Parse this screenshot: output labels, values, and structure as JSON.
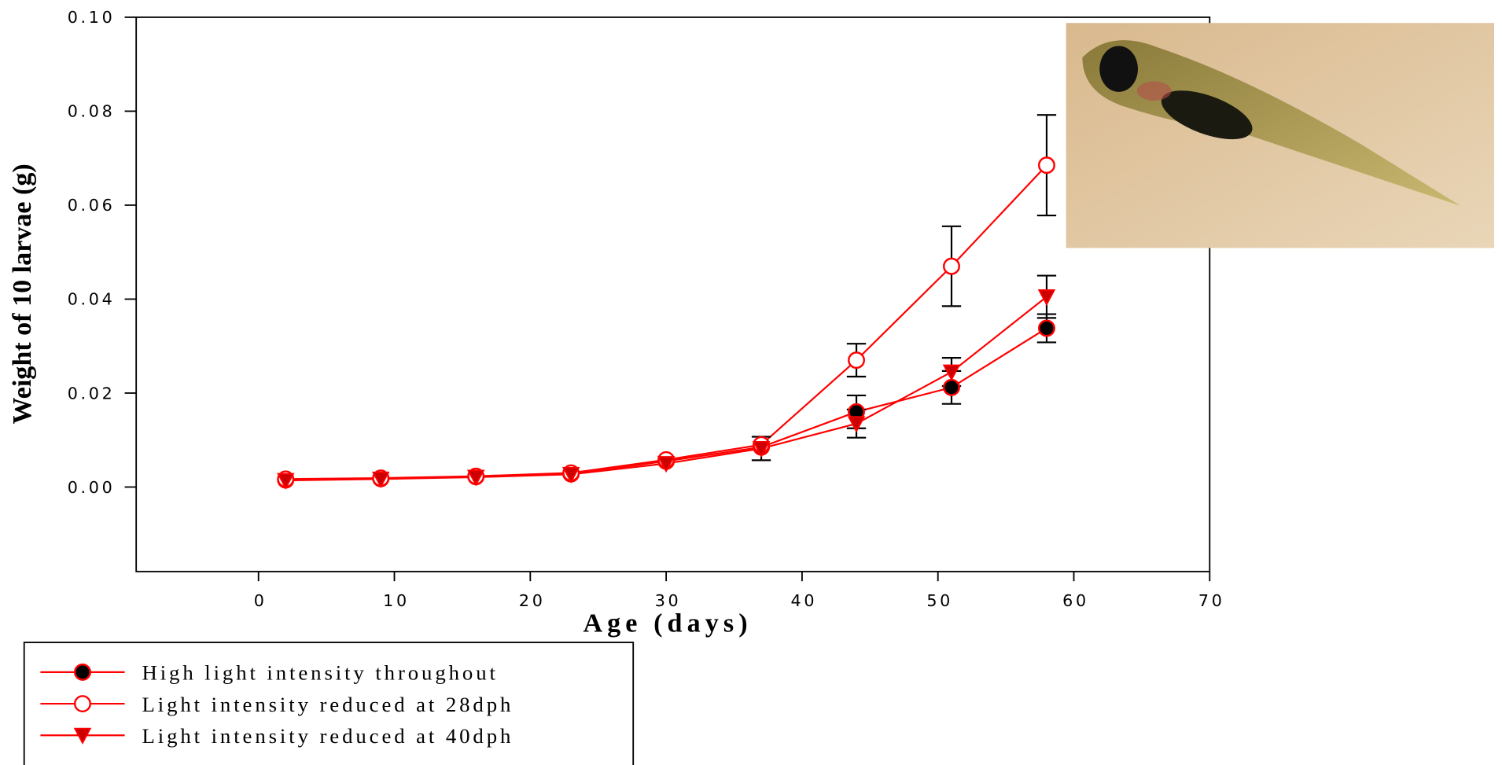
{
  "chart_data": {
    "type": "line",
    "x_label": "Age (days)",
    "y_label": "Weight of 10 larvae (g)",
    "xlim": [
      -9,
      70
    ],
    "xticks": [
      0,
      10,
      20,
      30,
      40,
      50,
      60,
      70
    ],
    "ylim": [
      -0.018,
      0.1
    ],
    "yticks": [
      {
        "value": 0,
        "label": "0.00"
      },
      {
        "value": 0.02,
        "label": "0.02"
      },
      {
        "value": 0.04,
        "label": "0.04"
      },
      {
        "value": 0.06,
        "label": "0.06"
      },
      {
        "value": 0.08,
        "label": "0.08"
      },
      {
        "value": 0.1,
        "label": "0.10"
      }
    ],
    "x": [
      2,
      9,
      16,
      23,
      30,
      37,
      44,
      51,
      58
    ],
    "series": [
      {
        "name": "High light intensity throughout",
        "color": "#ff0000",
        "marker": "circle",
        "marker_fill": "#000000",
        "values": [
          0.0015,
          0.0018,
          0.0022,
          0.0028,
          0.0055,
          0.0085,
          0.016,
          0.0212,
          0.0338
        ],
        "errors": [
          null,
          null,
          null,
          null,
          null,
          null,
          0.0035,
          0.0035,
          0.003
        ]
      },
      {
        "name": "Light intensity reduced at 28dph",
        "color": "#ff0000",
        "marker": "circle",
        "marker_fill": "#ffffff",
        "values": [
          0.0017,
          0.0019,
          0.0023,
          0.003,
          0.0058,
          0.009,
          0.027,
          0.047,
          0.0685
        ],
        "errors": [
          null,
          null,
          null,
          null,
          null,
          null,
          0.0035,
          0.0085,
          0.0107
        ]
      },
      {
        "name": "Light intensity reduced at 40dph",
        "color": "#ff0000",
        "marker": "triangle-down",
        "marker_fill": "#cc0000",
        "values": [
          0.0014,
          0.0017,
          0.0021,
          0.0027,
          0.005,
          0.0082,
          0.0135,
          0.0245,
          0.0405
        ],
        "errors": [
          null,
          null,
          null,
          null,
          null,
          0.0025,
          0.003,
          0.003,
          0.0045
        ]
      }
    ]
  }
}
